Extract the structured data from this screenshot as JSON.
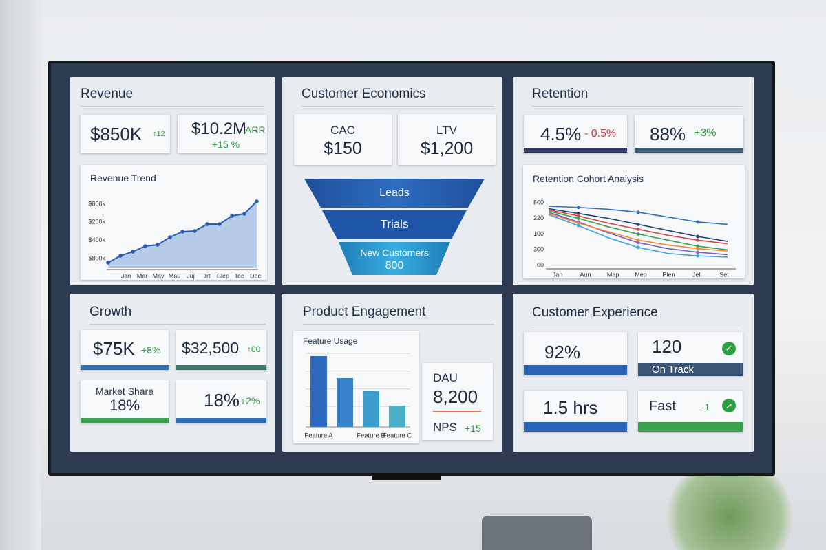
{
  "revenue": {
    "title": "Revenue",
    "kpis": [
      {
        "value": "$850K",
        "delta": "↑12"
      },
      {
        "value": "$10.2M",
        "unit": "ARR",
        "delta": "+15 %"
      }
    ],
    "trend": {
      "title": "Revenue Trend",
      "y_labels": [
        "$800k",
        "$200k",
        "$400k",
        "$800k"
      ],
      "x_labels": [
        "Jan",
        "Mar",
        "May",
        "Mau",
        "Juj",
        "Jrt",
        "Blep",
        "Tec",
        "Dec"
      ],
      "ylim": [
        0,
        800
      ],
      "values": [
        64,
        144,
        192,
        256,
        272,
        360,
        424,
        432,
        512,
        512,
        608,
        632,
        776
      ],
      "color": "#2a5bb0"
    }
  },
  "economics": {
    "title": "Customer Economics",
    "kpis": [
      {
        "label": "CAC",
        "value": "$150"
      },
      {
        "label": "LTV",
        "value": "$1,200"
      }
    ],
    "funnel": [
      {
        "label": "Leads"
      },
      {
        "label": "Trials"
      },
      {
        "label": "New Customers",
        "value": "800"
      }
    ]
  },
  "retention": {
    "title": "Retention",
    "kpis": [
      {
        "value": "4.5%",
        "delta": "- 0.5%"
      },
      {
        "value": "88%",
        "delta": "+3%"
      }
    ],
    "cohort": {
      "title": "Retention Cohort Analysis",
      "y_labels": [
        "800",
        "220",
        "100",
        "300",
        "00"
      ],
      "x_labels": [
        "Jan",
        "Aun",
        "Map",
        "Mep",
        "Plen",
        "Jel",
        "Set"
      ],
      "ylim": [
        0,
        100
      ],
      "series": [
        {
          "color": "#2a6fc0",
          "values": [
            100,
            98,
            95,
            90,
            82,
            74,
            70
          ]
        },
        {
          "color": "#1f3f7a",
          "values": [
            96,
            88,
            80,
            70,
            60,
            50,
            42
          ]
        },
        {
          "color": "#d64545",
          "values": [
            94,
            84,
            72,
            62,
            52,
            44,
            38
          ]
        },
        {
          "color": "#3aa050",
          "values": [
            92,
            80,
            66,
            54,
            44,
            34,
            28
          ]
        },
        {
          "color": "#7a5cc0",
          "values": [
            90,
            74,
            56,
            40,
            30,
            24,
            20
          ]
        },
        {
          "color": "#f08a30",
          "values": [
            88,
            72,
            58,
            44,
            36,
            30,
            26
          ]
        },
        {
          "color": "#3aa0e0",
          "values": [
            86,
            68,
            48,
            32,
            22,
            18,
            16
          ]
        }
      ]
    }
  },
  "growth": {
    "title": "Growth",
    "kpis": [
      {
        "value": "$75K",
        "delta": "+8%"
      },
      {
        "value": "$32,500",
        "delta": "↑00"
      },
      {
        "label": "Market Share",
        "value": "18%"
      },
      {
        "value": "18%",
        "delta": "+2%"
      }
    ]
  },
  "engagement": {
    "title": "Product Engagement",
    "usage": {
      "title": "Feature Usage",
      "categories": [
        "Feature A",
        null,
        "Feature B",
        "Feature C"
      ],
      "values": [
        100,
        69,
        51,
        30
      ],
      "colors": [
        "#2e6bc0",
        "#3a82cc",
        "#3a9ccc",
        "#4ab0c8"
      ],
      "ylim": [
        0,
        100
      ]
    },
    "dau": {
      "label": "DAU",
      "value": "8,200"
    },
    "nps": {
      "label": "NPS",
      "delta": "+15"
    }
  },
  "experience": {
    "title": "Customer Experience",
    "kpis": [
      {
        "value": "92%"
      },
      {
        "value": "120",
        "label": "On Track"
      },
      {
        "value": "1.5 hrs"
      },
      {
        "value": "Fast",
        "delta": "-1"
      }
    ]
  }
}
